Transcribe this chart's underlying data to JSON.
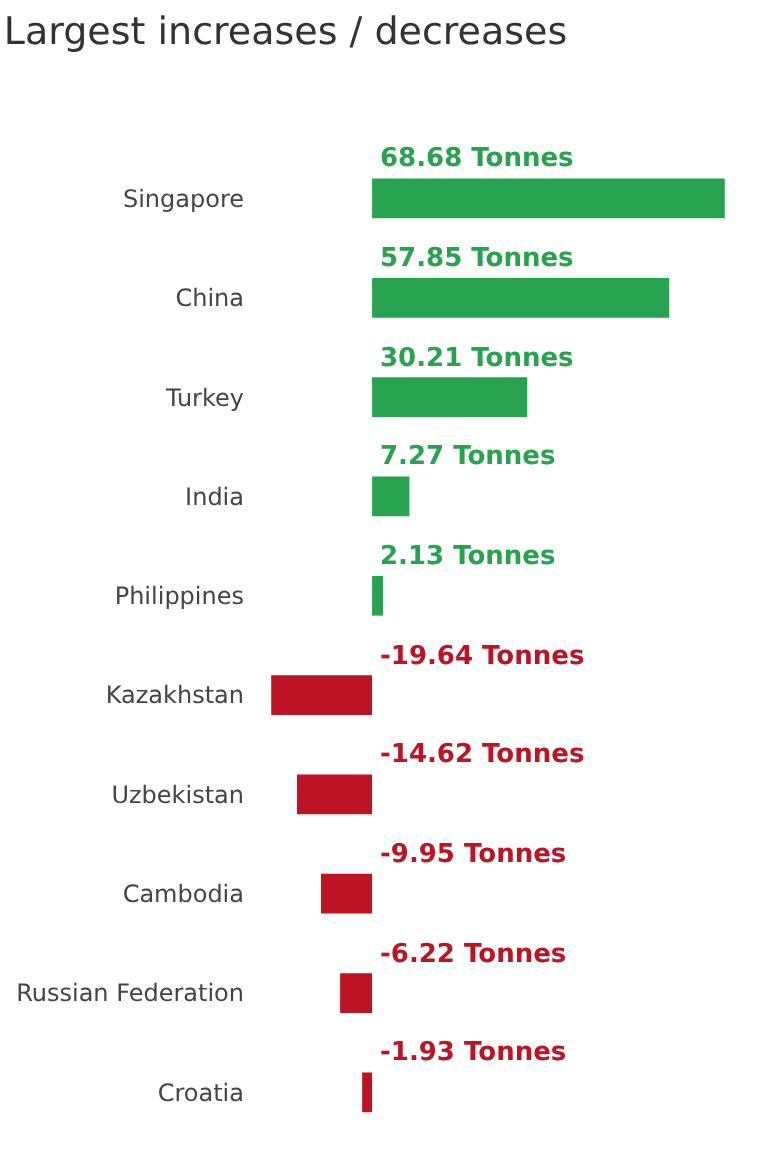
{
  "chart_data": {
    "type": "bar",
    "orientation": "horizontal",
    "title": "Largest increases / decreases",
    "categories": [
      "Singapore",
      "China",
      "Turkey",
      "India",
      "Philippines",
      "Kazakhstan",
      "Uzbekistan",
      "Cambodia",
      "Russian Federation",
      "Croatia"
    ],
    "values": [
      68.68,
      57.85,
      30.21,
      7.27,
      2.13,
      -19.64,
      -14.62,
      -9.95,
      -6.22,
      -1.93
    ],
    "value_labels": [
      "68.68 Tonnes",
      "57.85 Tonnes",
      "30.21 Tonnes",
      "7.27 Tonnes",
      "2.13 Tonnes",
      "-19.64 Tonnes",
      "-14.62 Tonnes",
      "-9.95 Tonnes",
      "-6.22 Tonnes",
      "-1.93 Tonnes"
    ],
    "colors": [
      "#27a34f",
      "#27a34f",
      "#27a34f",
      "#27a34f",
      "#27a34f",
      "#be1325",
      "#be1325",
      "#be1325",
      "#be1325",
      "#be1325"
    ],
    "tick_labels": false
  }
}
